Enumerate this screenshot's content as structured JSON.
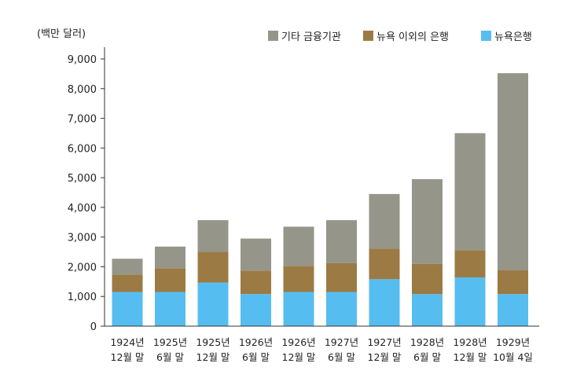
{
  "chart_data": {
    "type": "bar",
    "stacked": true,
    "unit_label": "(백만 달러)",
    "categories": [
      [
        "1924년",
        "12월 말"
      ],
      [
        "1925년",
        "6월 말"
      ],
      [
        "1925년",
        "12월 말"
      ],
      [
        "1926년",
        "6월 말"
      ],
      [
        "1926년",
        "12월 말"
      ],
      [
        "1927년",
        "6월 말"
      ],
      [
        "1927년",
        "12월 말"
      ],
      [
        "1928년",
        "6월 말"
      ],
      [
        "1928년",
        "12월 말"
      ],
      [
        "1929년",
        "10월 4일"
      ]
    ],
    "series": [
      {
        "name": "뉴욕은행",
        "color": "#56bdf0",
        "values": [
          1150,
          1150,
          1470,
          1080,
          1150,
          1150,
          1580,
          1080,
          1640,
          1080
        ]
      },
      {
        "name": "뉴욕 이외의 은행",
        "color": "#9c7a44",
        "values": [
          590,
          800,
          1030,
          790,
          880,
          970,
          1030,
          1020,
          920,
          800
        ]
      },
      {
        "name": "기타 금융기관",
        "color": "#959689",
        "values": [
          530,
          730,
          1070,
          1080,
          1320,
          1450,
          1840,
          2850,
          3940,
          6640
        ]
      }
    ],
    "legend_order": [
      "기타 금융기관",
      "뉴욕 이외의 은행",
      "뉴욕은행"
    ],
    "legend_position": "top-right",
    "ylim": [
      0,
      9000
    ],
    "yticks": [
      "0",
      "1,000",
      "2,000",
      "3,000",
      "4,000",
      "5,000",
      "6,000",
      "7,000",
      "8,000",
      "9,000"
    ],
    "ytick_values": [
      0,
      1000,
      2000,
      3000,
      4000,
      5000,
      6000,
      7000,
      8000,
      9000
    ],
    "grid": false
  }
}
